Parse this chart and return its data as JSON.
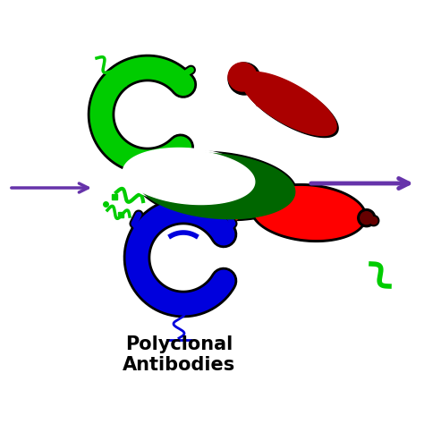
{
  "title": "Polyclonal\nAntibodies",
  "title_fontsize": 15,
  "title_fontweight": "bold",
  "title_color": "#000000",
  "bg_color": "#ffffff",
  "purple": "#6633AA",
  "green": "#00CC00",
  "darkgreen": "#006600",
  "darkred": "#AA0000",
  "blue": "#0000DD",
  "red": "#FF0000"
}
